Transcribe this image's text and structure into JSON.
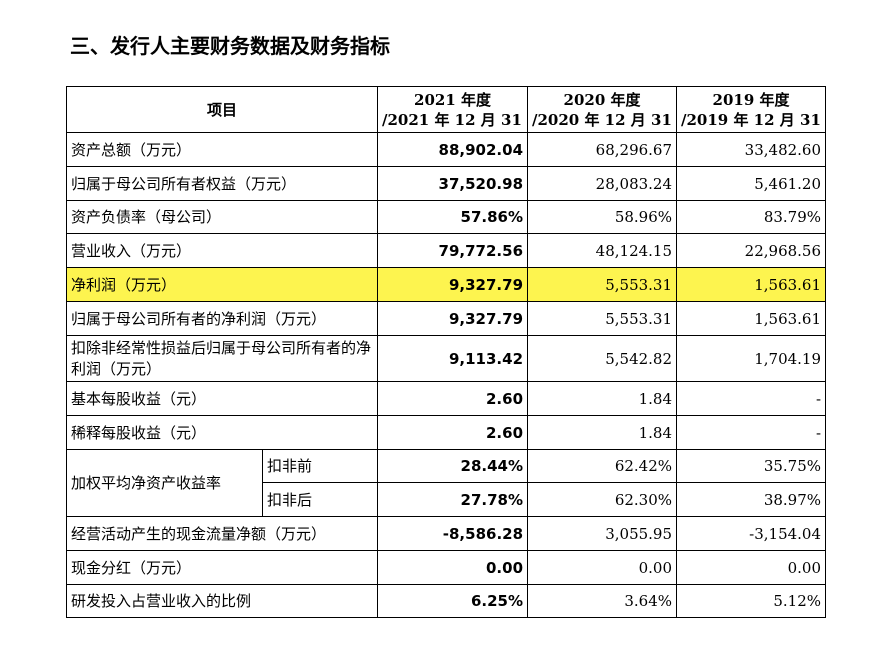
{
  "title": "三、发行人主要财务数据及财务指标",
  "header": {
    "item": "项目",
    "col2021_line1": "2021 年度",
    "col2021_line2": "/2021 年 12 月 31 日",
    "col2020_line1": "2020 年度",
    "col2020_line2": "/2020 年 12 月 31 日",
    "col2019_line1": "2019 年度",
    "col2019_line2": "/2019 年 12 月 31 日"
  },
  "rows": [
    {
      "label": "资产总额（万元）",
      "v2021": "88,902.04",
      "v2020": "68,296.67",
      "v2019": "33,482.60"
    },
    {
      "label": "归属于母公司所有者权益（万元）",
      "v2021": "37,520.98",
      "v2020": "28,083.24",
      "v2019": "5,461.20"
    },
    {
      "label": "资产负债率（母公司）",
      "v2021": "57.86%",
      "v2020": "58.96%",
      "v2019": "83.79%"
    },
    {
      "label": "营业收入（万元）",
      "v2021": "79,772.56",
      "v2020": "48,124.15",
      "v2019": "22,968.56"
    },
    {
      "label": "净利润（万元）",
      "v2021": "9,327.79",
      "v2020": "5,553.31",
      "v2019": "1,563.61"
    },
    {
      "label": "归属于母公司所有者的净利润（万元）",
      "v2021": "9,327.79",
      "v2020": "5,553.31",
      "v2019": "1,563.61"
    },
    {
      "label": "扣除非经常性损益后归属于母公司所有者的净利润（万元）",
      "v2021": "9,113.42",
      "v2020": "5,542.82",
      "v2019": "1,704.19"
    },
    {
      "label": "基本每股收益（元）",
      "v2021": "2.60",
      "v2020": "1.84",
      "v2019": "-"
    },
    {
      "label": "稀释每股收益（元）",
      "v2021": "2.60",
      "v2020": "1.84",
      "v2019": "-"
    }
  ],
  "roe": {
    "label": "加权平均净资产收益率",
    "before": {
      "sub": "扣非前",
      "v2021": "28.44%",
      "v2020": "62.42%",
      "v2019": "35.75%"
    },
    "after": {
      "sub": "扣非后",
      "v2021": "27.78%",
      "v2020": "62.30%",
      "v2019": "38.97%"
    }
  },
  "rows_tail": [
    {
      "label": "经营活动产生的现金流量净额（万元）",
      "v2021": "-8,586.28",
      "v2020": "3,055.95",
      "v2019": "-3,154.04"
    },
    {
      "label": "现金分红（万元）",
      "v2021": "0.00",
      "v2020": "0.00",
      "v2019": "0.00"
    },
    {
      "label": "研发投入占营业收入的比例",
      "v2021": "6.25%",
      "v2020": "3.64%",
      "v2019": "5.12%"
    }
  ],
  "highlight_color": "#fdf44f"
}
